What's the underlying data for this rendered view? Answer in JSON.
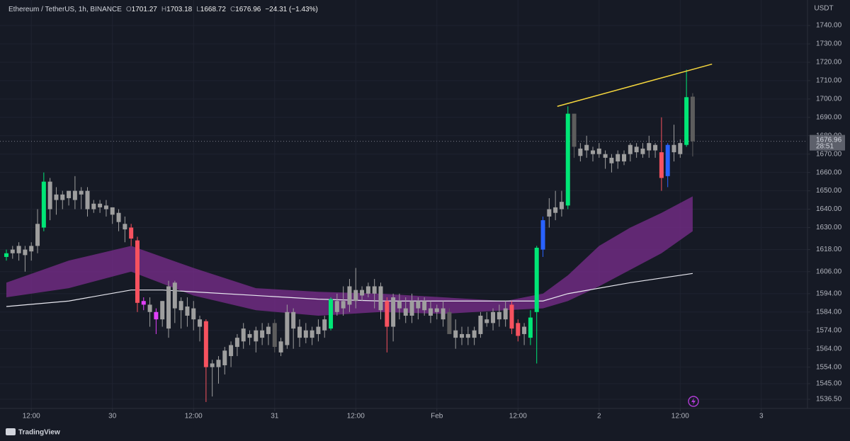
{
  "header": {
    "symbol": "Ethereum / TetherUS, 1h, BINANCE",
    "fields": [
      {
        "key": "O",
        "value": "1701.27"
      },
      {
        "key": "H",
        "value": "1703.18"
      },
      {
        "key": "L",
        "value": "1668.72"
      },
      {
        "key": "C",
        "value": "1676.96"
      }
    ],
    "change": "−24.31 (−1.43%)"
  },
  "currency": "USDT",
  "countdown": "28:51",
  "footer": "TradingView",
  "chart_data": {
    "type": "candlestick",
    "xlim": [
      -1.02,
      128.4
    ],
    "xticks": [
      {
        "value": 4,
        "label": "12:00"
      },
      {
        "value": 17,
        "label": "30"
      },
      {
        "value": 30,
        "label": "12:00"
      },
      {
        "value": 43,
        "label": "31"
      },
      {
        "value": 56,
        "label": "12:00"
      },
      {
        "value": 69,
        "label": "Feb"
      },
      {
        "value": 82,
        "label": "12:00"
      },
      {
        "value": 95,
        "label": "2"
      },
      {
        "value": 108,
        "label": "12:00"
      },
      {
        "value": 121,
        "label": "3"
      }
    ],
    "ylim": [
      1531.5,
      1751.6
    ],
    "yticks": [
      {
        "value": 1740,
        "label": "1740.00"
      },
      {
        "value": 1730,
        "label": "1730.00"
      },
      {
        "value": 1720,
        "label": "1720.00"
      },
      {
        "value": 1710,
        "label": "1710.00"
      },
      {
        "value": 1700,
        "label": "1700.00"
      },
      {
        "value": 1690,
        "label": "1690.00"
      },
      {
        "value": 1680,
        "label": "1680.00"
      },
      {
        "value": 1670,
        "label": "1670.00"
      },
      {
        "value": 1660,
        "label": "1660.00"
      },
      {
        "value": 1650,
        "label": "1650.00"
      },
      {
        "value": 1640,
        "label": "1640.00"
      },
      {
        "value": 1630,
        "label": "1630.00"
      },
      {
        "value": 1618,
        "label": "1618.00"
      },
      {
        "value": 1606,
        "label": "1606.00"
      },
      {
        "value": 1594,
        "label": "1594.00"
      },
      {
        "value": 1584,
        "label": "1584.00"
      },
      {
        "value": 1574,
        "label": "1574.00"
      },
      {
        "value": 1564,
        "label": "1564.00"
      },
      {
        "value": 1554,
        "label": "1554.00"
      },
      {
        "value": 1545,
        "label": "1545.00"
      },
      {
        "value": 1536.5,
        "label": "1536.50"
      }
    ],
    "grid": true,
    "last_price": 1676.96,
    "x": [
      0,
      1,
      2,
      3,
      4,
      5,
      6,
      7,
      8,
      9,
      10,
      11,
      12,
      13,
      14,
      15,
      16,
      17,
      18,
      19,
      20,
      21,
      22,
      23,
      24,
      25,
      26,
      27,
      28,
      29,
      30,
      31,
      32,
      33,
      34,
      35,
      36,
      37,
      38,
      39,
      40,
      41,
      42,
      43,
      44,
      45,
      46,
      47,
      48,
      49,
      50,
      51,
      52,
      53,
      54,
      55,
      56,
      57,
      58,
      59,
      60,
      61,
      62,
      63,
      64,
      65,
      66,
      67,
      68,
      69,
      70,
      71,
      72,
      73,
      74,
      75,
      76,
      77,
      78,
      79,
      80,
      81,
      82,
      83,
      84,
      85,
      86,
      87,
      88,
      89,
      90,
      91,
      92,
      93,
      94,
      95,
      96,
      97,
      98,
      99,
      100,
      101,
      102,
      103,
      104,
      105,
      106,
      107,
      108,
      109,
      110
    ],
    "open": [
      1614,
      1616,
      1616,
      1618,
      1617,
      1620,
      1630,
      1655,
      1645,
      1648,
      1646,
      1650,
      1648,
      1650,
      1640,
      1643,
      1642,
      1641,
      1638,
      1632,
      1630,
      1623,
      1590,
      1588,
      1584,
      1580,
      1575,
      1600,
      1590,
      1587,
      1586,
      1580,
      1579,
      1554,
      1554,
      1555,
      1560,
      1565,
      1568,
      1572,
      1568,
      1570,
      1572,
      1578,
      1562,
      1566,
      1584,
      1576,
      1570,
      1574,
      1572,
      1574,
      1575,
      1590,
      1586,
      1588,
      1596,
      1593,
      1594,
      1598,
      1598,
      1590,
      1576,
      1590,
      1586,
      1582,
      1590,
      1585,
      1586,
      1584,
      1586,
      1584,
      1574,
      1570,
      1572,
      1570,
      1572,
      1580,
      1578,
      1580,
      1580,
      1588,
      1578,
      1576,
      1570,
      1584,
      1618,
      1636,
      1638,
      1640,
      1642,
      1692,
      1673,
      1672,
      1672,
      1673,
      1670,
      1668,
      1666,
      1670,
      1670,
      1674,
      1670,
      1672,
      1675,
      1671,
      1658,
      1675,
      1670,
      1675,
      1701.27
    ],
    "high": [
      1618,
      1620,
      1622,
      1620,
      1622,
      1640,
      1660,
      1657,
      1652,
      1650,
      1650,
      1658,
      1652,
      1652,
      1645,
      1645,
      1645,
      1641,
      1640,
      1636,
      1632,
      1625,
      1592,
      1592,
      1586,
      1590,
      1601,
      1601,
      1592,
      1592,
      1590,
      1582,
      1580,
      1558,
      1560,
      1565,
      1568,
      1572,
      1578,
      1574,
      1576,
      1578,
      1578,
      1580,
      1570,
      1588,
      1586,
      1580,
      1578,
      1576,
      1580,
      1582,
      1592,
      1594,
      1598,
      1602,
      1608,
      1598,
      1600,
      1602,
      1600,
      1592,
      1594,
      1594,
      1592,
      1594,
      1592,
      1592,
      1590,
      1588,
      1590,
      1586,
      1580,
      1576,
      1576,
      1576,
      1584,
      1584,
      1586,
      1588,
      1590,
      1590,
      1580,
      1578,
      1585,
      1620,
      1636,
      1646,
      1650,
      1650,
      1696,
      1692,
      1676,
      1680,
      1674,
      1676,
      1672,
      1670,
      1672,
      1672,
      1676,
      1676,
      1676,
      1680,
      1676,
      1690,
      1676,
      1686,
      1678,
      1716,
      1703.18
    ],
    "low": [
      1612,
      1613,
      1612,
      1606,
      1612,
      1616,
      1628,
      1634,
      1637,
      1640,
      1642,
      1640,
      1640,
      1636,
      1638,
      1638,
      1636,
      1632,
      1628,
      1622,
      1620,
      1584,
      1585,
      1576,
      1572,
      1576,
      1570,
      1578,
      1575,
      1576,
      1574,
      1568,
      1535,
      1538,
      1545,
      1550,
      1554,
      1560,
      1564,
      1566,
      1562,
      1566,
      1566,
      1562,
      1560,
      1564,
      1564,
      1565,
      1567,
      1566,
      1568,
      1570,
      1574,
      1582,
      1582,
      1584,
      1586,
      1590,
      1592,
      1586,
      1580,
      1562,
      1568,
      1580,
      1578,
      1578,
      1580,
      1582,
      1578,
      1580,
      1576,
      1572,
      1564,
      1566,
      1566,
      1566,
      1570,
      1576,
      1574,
      1576,
      1576,
      1572,
      1568,
      1566,
      1566,
      1556,
      1614,
      1630,
      1634,
      1636,
      1640,
      1668,
      1666,
      1668,
      1666,
      1668,
      1662,
      1660,
      1662,
      1664,
      1666,
      1668,
      1668,
      1668,
      1668,
      1650,
      1652,
      1666,
      1668,
      1674,
      1668.72
    ],
    "close": [
      1616,
      1618,
      1620,
      1615,
      1620,
      1632,
      1655,
      1640,
      1648,
      1645,
      1650,
      1645,
      1650,
      1640,
      1643,
      1641,
      1640,
      1637,
      1633,
      1629,
      1624,
      1589,
      1588,
      1584,
      1580,
      1590,
      1598,
      1586,
      1585,
      1582,
      1580,
      1576,
      1554,
      1556,
      1558,
      1563,
      1566,
      1570,
      1575,
      1570,
      1574,
      1574,
      1576,
      1565,
      1568,
      1584,
      1575,
      1570,
      1574,
      1570,
      1576,
      1580,
      1591,
      1584,
      1590,
      1598,
      1590,
      1596,
      1598,
      1594,
      1585,
      1576,
      1592,
      1586,
      1582,
      1590,
      1586,
      1590,
      1582,
      1586,
      1580,
      1572,
      1570,
      1572,
      1570,
      1574,
      1582,
      1578,
      1584,
      1584,
      1586,
      1575,
      1571,
      1572,
      1581,
      1619,
      1634,
      1640,
      1641,
      1644,
      1692,
      1674,
      1669,
      1675,
      1670,
      1670,
      1668,
      1665,
      1670,
      1666,
      1675,
      1671,
      1673,
      1676,
      1672,
      1657,
      1675,
      1671,
      1676,
      1701,
      1676.96
    ],
    "colors": [
      "#00e676",
      "#9e9e9e",
      "#9e9e9e",
      "#9e9e9e",
      "#9e9e9e",
      "#9e9e9e",
      "#00e676",
      "#9e9e9e",
      "#9e9e9e",
      "#9e9e9e",
      "#9e9e9e",
      "#9e9e9e",
      "#9e9e9e",
      "#9e9e9e",
      "#9e9e9e",
      "#9e9e9e",
      "#9e9e9e",
      "#9e9e9e",
      "#9e9e9e",
      "#9e9e9e",
      "#f7525f",
      "#f7525f",
      "#e040fb",
      "#9e9e9e",
      "#e040fb",
      "#9e9e9e",
      "#9e9e9e",
      "#9e9e9e",
      "#9e9e9e",
      "#9e9e9e",
      "#9e9e9e",
      "#9e9e9e",
      "#f7525f",
      "#9e9e9e",
      "#9e9e9e",
      "#9e9e9e",
      "#9e9e9e",
      "#9e9e9e",
      "#9e9e9e",
      "#9e9e9e",
      "#9e9e9e",
      "#9e9e9e",
      "#9e9e9e",
      "#5d5d5d",
      "#9e9e9e",
      "#9e9e9e",
      "#9e9e9e",
      "#9e9e9e",
      "#9e9e9e",
      "#9e9e9e",
      "#9e9e9e",
      "#9e9e9e",
      "#00e676",
      "#9e9e9e",
      "#9e9e9e",
      "#9e9e9e",
      "#9e9e9e",
      "#9e9e9e",
      "#9e9e9e",
      "#9e9e9e",
      "#9e9e9e",
      "#f7525f",
      "#9e9e9e",
      "#9e9e9e",
      "#9e9e9e",
      "#9e9e9e",
      "#9e9e9e",
      "#9e9e9e",
      "#9e9e9e",
      "#9e9e9e",
      "#9e9e9e",
      "#5d5d5d",
      "#9e9e9e",
      "#9e9e9e",
      "#9e9e9e",
      "#9e9e9e",
      "#9e9e9e",
      "#9e9e9e",
      "#9e9e9e",
      "#9e9e9e",
      "#9e9e9e",
      "#f7525f",
      "#f7525f",
      "#9e9e9e",
      "#00e676",
      "#00e676",
      "#2962ff",
      "#9e9e9e",
      "#9e9e9e",
      "#9e9e9e",
      "#00e676",
      "#5d5d5d",
      "#9e9e9e",
      "#9e9e9e",
      "#9e9e9e",
      "#9e9e9e",
      "#9e9e9e",
      "#9e9e9e",
      "#9e9e9e",
      "#9e9e9e",
      "#9e9e9e",
      "#9e9e9e",
      "#9e9e9e",
      "#9e9e9e",
      "#9e9e9e",
      "#f7525f",
      "#2962ff",
      "#9e9e9e",
      "#9e9e9e",
      "#00e676",
      "#5d5d5d"
    ],
    "band": {
      "color": "#7b2d8e",
      "x": [
        0,
        10,
        20,
        30,
        40,
        50,
        60,
        70,
        80,
        86,
        90,
        95,
        100,
        105,
        110
      ],
      "upper": [
        1600,
        1612,
        1620,
        1608,
        1597,
        1595,
        1594,
        1592,
        1590,
        1594,
        1604,
        1620,
        1630,
        1638,
        1647
      ],
      "lower": [
        1592,
        1597,
        1606,
        1593,
        1585,
        1582,
        1584,
        1583,
        1585,
        1586,
        1590,
        1598,
        1607,
        1616,
        1628
      ]
    },
    "ma": {
      "color": "#e8e8f0",
      "x": [
        0,
        10,
        20,
        25,
        30,
        40,
        50,
        60,
        70,
        80,
        86,
        90,
        100,
        110
      ],
      "values": [
        1587,
        1590,
        1596,
        1596,
        1595,
        1593,
        1591,
        1590,
        1590,
        1590,
        1590,
        1594,
        1600,
        1605
      ]
    },
    "trendline": {
      "color": "#f5d63d",
      "x": [
        88.3,
        113.1
      ],
      "values": [
        1696,
        1719
      ]
    }
  }
}
